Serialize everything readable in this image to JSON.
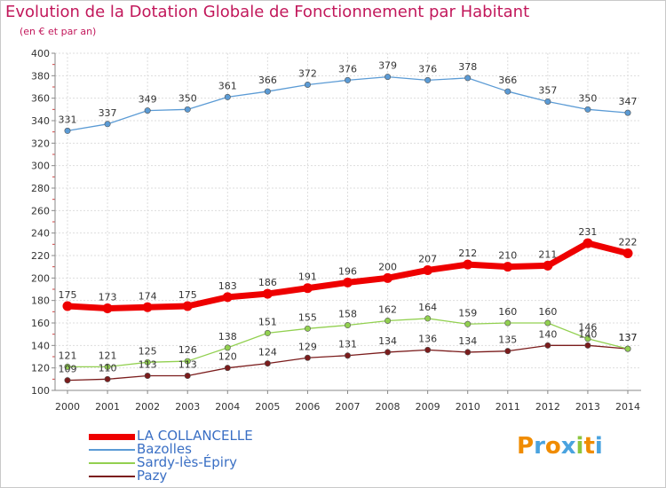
{
  "title": "Evolution de la Dotation Globale de Fonctionnement par Habitant",
  "subtitle": "(en € et par an)",
  "brand": {
    "letters": [
      "P",
      "r",
      "o",
      "x",
      "i",
      "t",
      "i"
    ],
    "colors": [
      "#f08c00",
      "#4aa3df",
      "#f08c00",
      "#4aa3df",
      "#8cc63f",
      "#f08c00",
      "#4aa3df"
    ]
  },
  "chart_data": {
    "type": "line",
    "x": [
      "2000",
      "2001",
      "2002",
      "2003",
      "2004",
      "2005",
      "2006",
      "2007",
      "2008",
      "2009",
      "2010",
      "2011",
      "2012",
      "2013",
      "2014"
    ],
    "ylim": [
      100,
      400
    ],
    "yticks": [
      "100",
      "120",
      "140",
      "160",
      "180",
      "200",
      "220",
      "240",
      "260",
      "280",
      "300",
      "320",
      "340",
      "360",
      "380",
      "400"
    ],
    "grid": true,
    "legend_position": "bottom-left",
    "series": [
      {
        "name": "LA COLLANCELLE",
        "color": "#ee0000",
        "values": [
          175,
          173,
          174,
          175,
          183,
          186,
          191,
          196,
          200,
          207,
          212,
          210,
          211,
          231,
          222
        ],
        "labels": [
          "175",
          "173",
          "174",
          "175",
          "183",
          "186",
          "191",
          "196",
          "200",
          "207",
          "212",
          "210",
          "211",
          "231",
          "222"
        ]
      },
      {
        "name": "Bazolles",
        "color": "#5b9bd5",
        "values": [
          331,
          337,
          349,
          350,
          361,
          366,
          372,
          376,
          379,
          376,
          378,
          366,
          357,
          350,
          347
        ],
        "labels": [
          "331",
          "337",
          "349",
          "350",
          "361",
          "366",
          "372",
          "376",
          "379",
          "376",
          "378",
          "366",
          "357",
          "350",
          "347"
        ]
      },
      {
        "name": "Sardy-lès-Épiry",
        "color": "#92d050",
        "values": [
          121,
          121,
          125,
          126,
          138,
          151,
          155,
          158,
          162,
          164,
          159,
          160,
          160,
          146,
          137
        ],
        "labels": [
          "121",
          "121",
          "125",
          "126",
          "138",
          "151",
          "155",
          "158",
          "162",
          "164",
          "159",
          "160",
          "160",
          "146",
          "137"
        ]
      },
      {
        "name": "Pazy",
        "color": "#7b1c1c",
        "values": [
          109,
          110,
          113,
          113,
          120,
          124,
          129,
          131,
          134,
          136,
          134,
          135,
          140,
          140,
          137
        ],
        "labels": [
          "109",
          "110",
          "113",
          "113",
          "120",
          "124",
          "129",
          "131",
          "134",
          "136",
          "134",
          "135",
          "140",
          "140",
          "137"
        ]
      }
    ]
  }
}
